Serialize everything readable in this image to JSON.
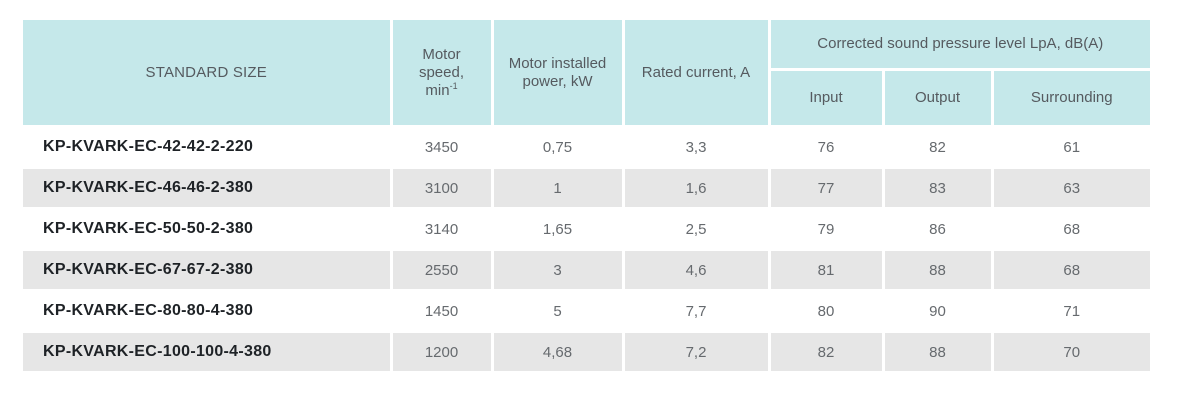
{
  "header": {
    "standard_size": "STANDARD SIZE",
    "motor_speed_line1": "Motor",
    "motor_speed_line2": "speed,",
    "motor_speed_unit": "min",
    "motor_speed_unit_sup": "-1",
    "motor_power": "Motor installed power, kW",
    "rated_current": "Rated current, A",
    "sound_group": "Corrected sound pressure level LpA, dB(A)",
    "input": "Input",
    "output": "Output",
    "surrounding": "Surrounding"
  },
  "rows": [
    {
      "model": "KP-KVARK-EC-42-42-2-220",
      "speed": "3450",
      "power": "0,75",
      "current": "3,3",
      "input": "76",
      "output": "82",
      "surrounding": "61"
    },
    {
      "model": "KP-KVARK-EC-46-46-2-380",
      "speed": "3100",
      "power": "1",
      "current": "1,6",
      "input": "77",
      "output": "83",
      "surrounding": "63"
    },
    {
      "model": "KP-KVARK-EC-50-50-2-380",
      "speed": "3140",
      "power": "1,65",
      "current": "2,5",
      "input": "79",
      "output": "86",
      "surrounding": "68"
    },
    {
      "model": "KP-KVARK-EC-67-67-2-380",
      "speed": "2550",
      "power": "3",
      "current": "4,6",
      "input": "81",
      "output": "88",
      "surrounding": "68"
    },
    {
      "model": "KP-KVARK-EC-80-80-4-380",
      "speed": "1450",
      "power": "5",
      "current": "7,7",
      "input": "80",
      "output": "90",
      "surrounding": "71"
    },
    {
      "model": "KP-KVARK-EC-100-100-4-380",
      "speed": "1200",
      "power": "4,68",
      "current": "7,2",
      "input": "82",
      "output": "88",
      "surrounding": "70"
    }
  ],
  "colors": {
    "header_bg": "#c5e8ea",
    "stripe_bg": "#e6e6e6"
  }
}
